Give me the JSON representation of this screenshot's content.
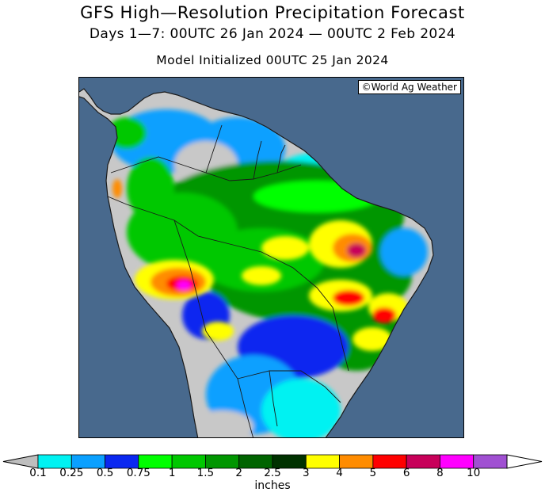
{
  "header": {
    "title": "GFS High—Resolution Precipitation Forecast",
    "period": "Days 1—7: 00UTC 26 Jan 2024 — 00UTC 2 Feb 2024",
    "init": "Model Initialized 00UTC 25 Jan 2024"
  },
  "map": {
    "credit": "©World Ag Weather",
    "region": "South America",
    "ocean_color": "#48698d",
    "land_dry_color": "#c8c8c8",
    "border_color": "#1a1a1a"
  },
  "legend": {
    "units": "inches",
    "ticks": [
      "0.1",
      "0.25",
      "0.5",
      "0.75",
      "1",
      "1.5",
      "2",
      "2.5",
      "3",
      "4",
      "5",
      "6",
      "8",
      "10"
    ],
    "colors": [
      "#00f2f2",
      "#0aa0ff",
      "#0a28f0",
      "#00ff00",
      "#00c800",
      "#009600",
      "#006400",
      "#003200",
      "#ffff00",
      "#ff8c00",
      "#ff0000",
      "#c8005a",
      "#ff00ff",
      "#a050d2"
    ],
    "under_color": "#bebebe",
    "over_color": "#ffffff"
  }
}
